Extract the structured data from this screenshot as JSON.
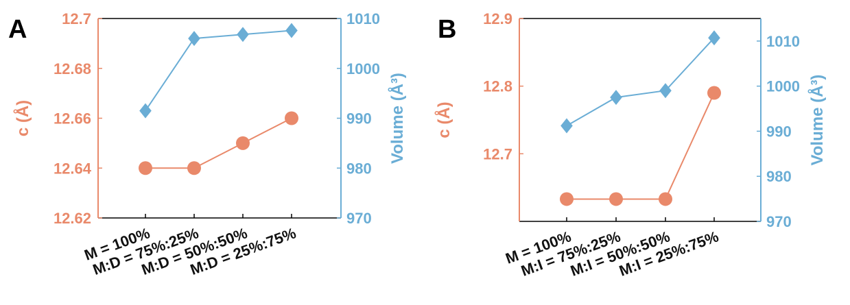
{
  "colors": {
    "left": "#E9896A",
    "right": "#6AADD5",
    "frame": "#000000"
  },
  "chart_data": [
    {
      "panel_label": "A",
      "type": "line",
      "categories": [
        "M = 100%",
        "M:D = 75%:25%",
        "M:D = 50%:50%",
        "M:D = 25%:75%"
      ],
      "left_axis": {
        "label": "c (Å)",
        "ylim": [
          12.62,
          12.7
        ],
        "ticks": [
          "12.62",
          "12.64",
          "12.66",
          "12.68",
          "12.7"
        ]
      },
      "right_axis": {
        "label": "Volume (Å³)",
        "ylim": [
          970,
          1010
        ],
        "ticks": [
          "970",
          "980",
          "990",
          "1000",
          "1010"
        ]
      },
      "series": [
        {
          "axis": "left",
          "marker": "circle",
          "values": [
            12.64,
            12.64,
            12.65,
            12.66
          ]
        },
        {
          "axis": "right",
          "marker": "diamond",
          "values": [
            991.5,
            1006.0,
            1006.8,
            1007.6
          ]
        }
      ]
    },
    {
      "panel_label": "B",
      "type": "line",
      "categories": [
        "M = 100%",
        "M:I = 75%:25%",
        "M:I = 50%:50%",
        "M:I = 25%:75%"
      ],
      "left_axis": {
        "label": "c (Å)",
        "ylim": [
          12.6,
          12.9
        ],
        "ticks": [
          "12.7",
          "12.8",
          "12.9"
        ]
      },
      "right_axis": {
        "label": "Volume (Å³)",
        "ylim": [
          970,
          1015
        ],
        "ticks": [
          "970",
          "980",
          "990",
          "1000",
          "1010"
        ]
      },
      "series": [
        {
          "axis": "left",
          "marker": "circle",
          "values": [
            12.633,
            12.633,
            12.633,
            12.79
          ]
        },
        {
          "axis": "right",
          "marker": "diamond",
          "values": [
            991.2,
            997.5,
            999.0,
            1010.7
          ]
        }
      ]
    }
  ]
}
